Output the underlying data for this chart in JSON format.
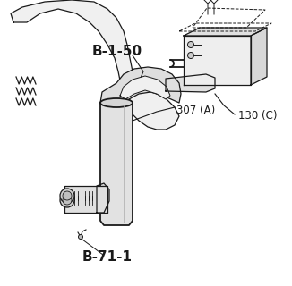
{
  "background_color": "#ffffff",
  "line_color": "#1a1a1a",
  "gray_fill": "#e8e8e8",
  "light_fill": "#f0f0f0",
  "label_b150": "B-1-50",
  "label_b711": "B-71-1",
  "label_130c": "130 (C)",
  "label_307a": "307 (A)",
  "label_b150_fontsize": 11,
  "label_b711_fontsize": 11,
  "label_130c_fontsize": 8.5,
  "label_307a_fontsize": 8.5,
  "figsize": [
    3.26,
    3.2
  ],
  "dpi": 100
}
